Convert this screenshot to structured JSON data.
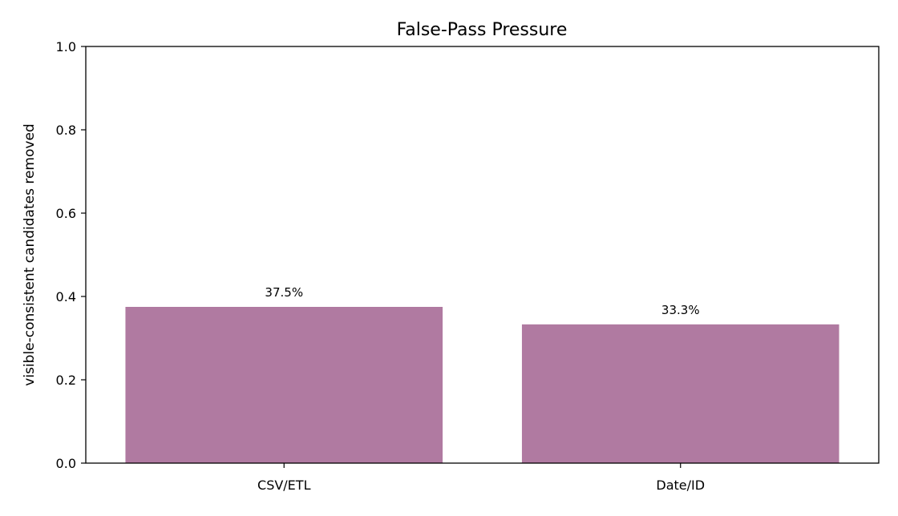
{
  "chart_data": {
    "type": "bar",
    "title": "False-Pass Pressure",
    "xlabel": "",
    "ylabel": "visible-consistent candidates removed",
    "categories": [
      "CSV/ETL",
      "Date/ID"
    ],
    "values": [
      0.375,
      0.333
    ],
    "data_labels": [
      "37.5%",
      "33.3%"
    ],
    "ylim": [
      0,
      1.0
    ],
    "yticks": [
      0.0,
      0.2,
      0.4,
      0.6,
      0.8,
      1.0
    ],
    "ytick_labels": [
      "0.0",
      "0.2",
      "0.4",
      "0.6",
      "0.8",
      "1.0"
    ],
    "grid": false,
    "legend": "none",
    "bar_color": "#b07aa1"
  }
}
